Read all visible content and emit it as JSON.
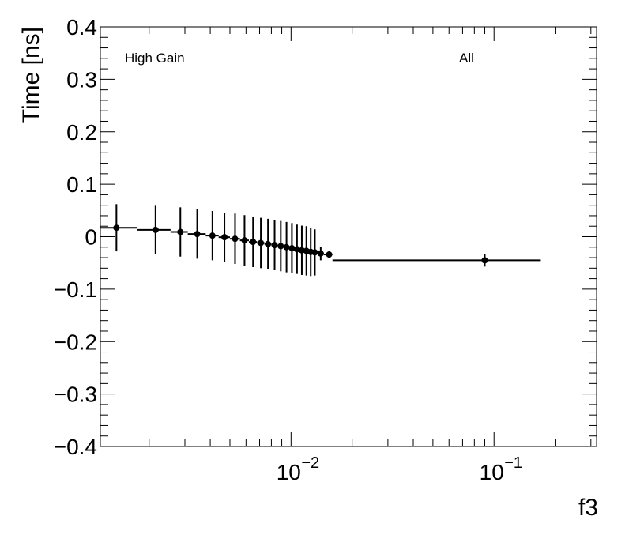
{
  "chart_data": {
    "type": "scatter",
    "title": "",
    "xlabel": "f3",
    "ylabel": "Time [ns]",
    "x_scale": "log",
    "xlim": [
      0.00115,
      0.32
    ],
    "ylim": [
      -0.4,
      0.4
    ],
    "y_ticks": [
      -0.4,
      -0.3,
      -0.2,
      -0.1,
      0,
      0.1,
      0.2,
      0.3,
      0.4
    ],
    "y_tick_labels": [
      "−0.4",
      "−0.3",
      "−0.2",
      "−0.1",
      "0",
      "0.1",
      "0.2",
      "0.3",
      "0.4"
    ],
    "x_major_ticks": [
      0.01,
      0.1
    ],
    "x_tick_labels": [
      {
        "base": "10",
        "exp": "−2"
      },
      {
        "base": "10",
        "exp": "−1"
      }
    ],
    "annotations": [
      "High Gain",
      "All"
    ],
    "grid": false,
    "legend": "none",
    "color": "#000000",
    "series": [
      {
        "points": [
          {
            "x": 0.00138,
            "y": 0.017,
            "err": 0.045,
            "xlo": 0.00115,
            "xhi": 0.00175
          },
          {
            "x": 0.00215,
            "y": 0.013,
            "err": 0.046,
            "xlo": 0.00175,
            "xhi": 0.00255
          },
          {
            "x": 0.00285,
            "y": 0.009,
            "err": 0.047,
            "xlo": 0.00255,
            "xhi": 0.0031
          },
          {
            "x": 0.00345,
            "y": 0.005,
            "err": 0.047,
            "xlo": 0.0031,
            "xhi": 0.0038
          },
          {
            "x": 0.0041,
            "y": 0.002,
            "err": 0.047,
            "xlo": 0.0038,
            "xhi": 0.0044
          },
          {
            "x": 0.0047,
            "y": -0.001,
            "err": 0.047,
            "xlo": 0.0044,
            "xhi": 0.005
          },
          {
            "x": 0.0053,
            "y": -0.004,
            "err": 0.048,
            "xlo": 0.005,
            "xhi": 0.0056
          },
          {
            "x": 0.0059,
            "y": -0.007,
            "err": 0.048,
            "xlo": 0.0056,
            "xhi": 0.0062
          },
          {
            "x": 0.0065,
            "y": -0.01,
            "err": 0.048,
            "xlo": 0.0062,
            "xhi": 0.0068
          },
          {
            "x": 0.0071,
            "y": -0.012,
            "err": 0.048,
            "xlo": 0.0068,
            "xhi": 0.0074
          },
          {
            "x": 0.0077,
            "y": -0.014,
            "err": 0.048,
            "xlo": 0.0074,
            "xhi": 0.008
          },
          {
            "x": 0.0083,
            "y": -0.016,
            "err": 0.048,
            "xlo": 0.008,
            "xhi": 0.0086
          },
          {
            "x": 0.0089,
            "y": -0.018,
            "err": 0.048,
            "xlo": 0.0086,
            "xhi": 0.0092
          },
          {
            "x": 0.0095,
            "y": -0.02,
            "err": 0.048,
            "xlo": 0.0092,
            "xhi": 0.0098
          },
          {
            "x": 0.0101,
            "y": -0.022,
            "err": 0.048,
            "xlo": 0.0098,
            "xhi": 0.0104
          },
          {
            "x": 0.0107,
            "y": -0.024,
            "err": 0.047,
            "xlo": 0.0104,
            "xhi": 0.011
          },
          {
            "x": 0.0113,
            "y": -0.026,
            "err": 0.047,
            "xlo": 0.011,
            "xhi": 0.0116
          },
          {
            "x": 0.0119,
            "y": -0.027,
            "err": 0.047,
            "xlo": 0.0116,
            "xhi": 0.0122
          },
          {
            "x": 0.0125,
            "y": -0.029,
            "err": 0.046,
            "xlo": 0.0122,
            "xhi": 0.0128
          },
          {
            "x": 0.0131,
            "y": -0.03,
            "err": 0.044,
            "xlo": 0.0128,
            "xhi": 0.0135
          },
          {
            "x": 0.014,
            "y": -0.032,
            "err": 0.013,
            "xlo": 0.0135,
            "xhi": 0.0145
          },
          {
            "x": 0.0154,
            "y": -0.034,
            "err": 0.007,
            "xlo": 0.0145,
            "xhi": 0.016
          },
          {
            "x": 0.09,
            "y": -0.045,
            "err": 0.012,
            "xlo": 0.016,
            "xhi": 0.17
          }
        ]
      }
    ]
  }
}
